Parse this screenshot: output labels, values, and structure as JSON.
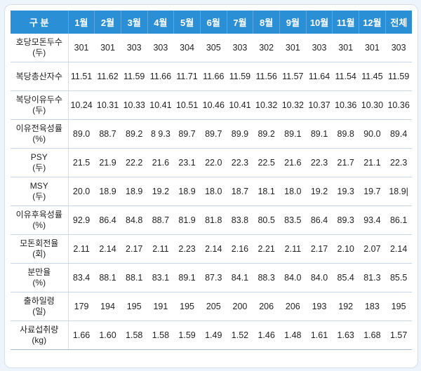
{
  "header": {
    "label": "구 분",
    "months": [
      "1월",
      "2월",
      "3월",
      "4월",
      "5월",
      "6월",
      "7월",
      "8월",
      "9월",
      "10월",
      "11월",
      "12월"
    ],
    "total": "전체"
  },
  "rows": [
    {
      "label": "호당모돈두수",
      "unit": "(두)",
      "values": [
        "301",
        "301",
        "303",
        "303",
        "304",
        "305",
        "303",
        "302",
        "301",
        "303",
        "301",
        "301"
      ],
      "total": "303"
    },
    {
      "label": "복당총산자수",
      "unit": "",
      "values": [
        "11.51",
        "11.62",
        "11.59",
        "11.66",
        "11.71",
        "11.66",
        "11.59",
        "11.56",
        "11.57",
        "11.64",
        "11.54",
        "11.45"
      ],
      "total": "11.59"
    },
    {
      "label": "복당이유두수",
      "unit": "(두)",
      "values": [
        "10.24",
        "10.31",
        "10.33",
        "10.41",
        "10.51",
        "10.46",
        "10.41",
        "10.32",
        "10.32",
        "10.37",
        "10.36",
        "10.30"
      ],
      "total": "10.36"
    },
    {
      "label": "이유전육성률",
      "unit": "(%)",
      "values": [
        "89.0",
        "88.7",
        "89.2",
        "8 9.3",
        "89.7",
        "89.7",
        "89.9",
        "89.2",
        "89.1",
        "89.1",
        "89.8",
        "90.0"
      ],
      "total": "89.4"
    },
    {
      "label": "PSY",
      "unit": "(두)",
      "values": [
        "21.5",
        "21.9",
        "22.2",
        "21.6",
        "23.1",
        "22.0",
        "22.3",
        "22.5",
        "21.6",
        "22.3",
        "21.7",
        "21.1"
      ],
      "total": "22.3"
    },
    {
      "label": "MSY",
      "unit": "(두)",
      "values": [
        "20.0",
        "18.9",
        "18.9",
        "19.2",
        "18.9",
        "18.0",
        "18.7",
        "18.1",
        "18.0",
        "19.2",
        "19.3",
        "19.7"
      ],
      "total": "18.9|"
    },
    {
      "label": "이유후육성률",
      "unit": "(%)",
      "values": [
        "92.9",
        "86.4",
        "84.8",
        "88.7",
        "81.9",
        "81.8",
        "83.8",
        "80.5",
        "83.5",
        "86.4",
        "89.3",
        "93.4"
      ],
      "total": "86.1"
    },
    {
      "label": "모돈회전율",
      "unit": "(회)",
      "values": [
        "2.11",
        "2.14",
        "2.17",
        "2.11",
        "2.23",
        "2.14",
        "2.16",
        "2.21",
        "2.11",
        "2.17",
        "2.10",
        "2.07"
      ],
      "total": "2.14"
    },
    {
      "label": "분만율",
      "unit": "(%)",
      "values": [
        "83.4",
        "88.1",
        "88.1",
        "83.1",
        "89.1",
        "87.3",
        "84.1",
        "88.3",
        "84.0",
        "84.0",
        "85.4",
        "81.3"
      ],
      "total": "85.5"
    },
    {
      "label": "출하일령",
      "unit": "(일)",
      "values": [
        "179",
        "194",
        "195",
        "191",
        "195",
        "205",
        "200",
        "206",
        "206",
        "193",
        "192",
        "183"
      ],
      "total": "195"
    },
    {
      "label": "사료섭취량",
      "unit": "(kg)",
      "values": [
        "1.66",
        "1.60",
        "1.58",
        "1.58",
        "1.59",
        "1.49",
        "1.52",
        "1.46",
        "1.48",
        "1.61",
        "1.63",
        "1.68"
      ],
      "total": "1.57"
    }
  ]
}
